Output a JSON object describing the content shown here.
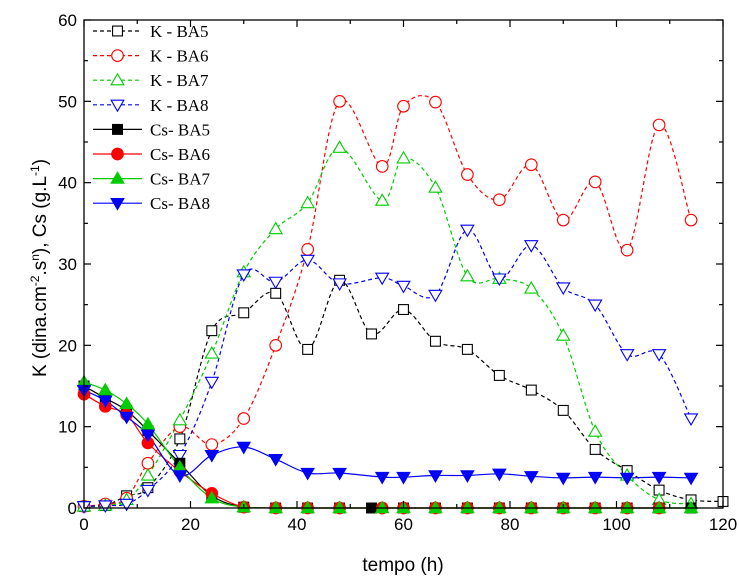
{
  "chart_data": {
    "type": "line",
    "xlabel": "tempo (h)",
    "ylabel": "K (dina.cm-2.sn), Cs (g.L-1)",
    "ylabel_parts": {
      "k_main": "K (dina.cm",
      "k_exp1": "-2",
      "k_mid": ".s",
      "k_exp2": "n",
      "k_close": "), Cs (g.L",
      "cs_exp": "-1",
      "cs_close": ")"
    },
    "xlim": [
      0,
      120
    ],
    "ylim": [
      0,
      60
    ],
    "xticks": [
      0,
      20,
      40,
      60,
      80,
      100,
      120
    ],
    "yticks": [
      0,
      10,
      20,
      30,
      40,
      50,
      60
    ],
    "grid": false,
    "legend_position": "top-left",
    "series": [
      {
        "name": "K - BA5",
        "color": "#000000",
        "marker": "square",
        "filled": false,
        "dash": true,
        "points": [
          [
            0,
            0.2
          ],
          [
            4,
            0.3
          ],
          [
            8,
            1.5
          ],
          [
            12,
            2.5
          ],
          [
            18,
            8.5
          ],
          [
            24,
            21.8
          ],
          [
            30,
            24
          ],
          [
            36,
            26.4
          ],
          [
            42,
            19.5
          ],
          [
            48,
            28
          ],
          [
            54,
            21.4
          ],
          [
            60,
            24.4
          ],
          [
            66,
            20.5
          ],
          [
            72,
            19.5
          ],
          [
            78,
            16.3
          ],
          [
            84,
            14.5
          ],
          [
            90,
            12
          ],
          [
            96,
            7.2
          ],
          [
            102,
            4.6
          ],
          [
            108,
            2.2
          ],
          [
            114,
            1
          ],
          [
            120,
            0.8
          ]
        ]
      },
      {
        "name": "K - BA6",
        "color": "#ff0000",
        "marker": "circle",
        "filled": false,
        "dash": true,
        "points": [
          [
            0,
            0.2
          ],
          [
            4,
            0.5
          ],
          [
            8,
            1.2
          ],
          [
            12,
            5.5
          ],
          [
            18,
            10
          ],
          [
            24,
            7.8
          ],
          [
            30,
            11
          ],
          [
            36,
            20
          ],
          [
            42,
            31.8
          ],
          [
            48,
            50
          ],
          [
            56,
            42
          ],
          [
            60,
            49.4
          ],
          [
            66,
            49.9
          ],
          [
            72,
            41
          ],
          [
            78,
            37.9
          ],
          [
            84,
            42.2
          ],
          [
            90,
            35.4
          ],
          [
            96,
            40.1
          ],
          [
            102,
            31.7
          ],
          [
            108,
            47.1
          ],
          [
            114,
            35.4
          ]
        ]
      },
      {
        "name": "K - BA7",
        "color": "#00cc00",
        "marker": "triangle-up",
        "filled": false,
        "dash": true,
        "points": [
          [
            0,
            0.2
          ],
          [
            4,
            0.3
          ],
          [
            8,
            1
          ],
          [
            12,
            4
          ],
          [
            18,
            10.8
          ],
          [
            24,
            19
          ],
          [
            30,
            29
          ],
          [
            36,
            34.3
          ],
          [
            42,
            37.5
          ],
          [
            48,
            44.3
          ],
          [
            56,
            37.8
          ],
          [
            60,
            43
          ],
          [
            66,
            39.4
          ],
          [
            72,
            28.5
          ],
          [
            78,
            28.2
          ],
          [
            84,
            27
          ],
          [
            90,
            21.2
          ],
          [
            96,
            9.4
          ],
          [
            102,
            4
          ],
          [
            108,
            1
          ],
          [
            114,
            0.5
          ]
        ]
      },
      {
        "name": "K - BA8",
        "color": "#0000ff",
        "marker": "triangle-down",
        "filled": false,
        "dash": true,
        "points": [
          [
            0,
            0.2
          ],
          [
            4,
            0.3
          ],
          [
            8,
            0.5
          ],
          [
            12,
            2.2
          ],
          [
            18,
            6.5
          ],
          [
            24,
            15.5
          ],
          [
            30,
            28.7
          ],
          [
            36,
            27.8
          ],
          [
            42,
            30.5
          ],
          [
            48,
            27.6
          ],
          [
            56,
            28.3
          ],
          [
            60,
            27.3
          ],
          [
            66,
            26.2
          ],
          [
            72,
            34.2
          ],
          [
            78,
            28.2
          ],
          [
            84,
            32.3
          ],
          [
            90,
            27.1
          ],
          [
            96,
            25
          ],
          [
            102,
            18.9
          ],
          [
            108,
            18.9
          ],
          [
            114,
            11
          ]
        ]
      },
      {
        "name": "Cs- BA5",
        "color": "#000000",
        "marker": "square",
        "filled": true,
        "dash": false,
        "points": [
          [
            0,
            15
          ],
          [
            4,
            13.5
          ],
          [
            8,
            12
          ],
          [
            12,
            9.5
          ],
          [
            18,
            5.5
          ],
          [
            24,
            1.5
          ],
          [
            30,
            0.1
          ],
          [
            36,
            0
          ],
          [
            42,
            0
          ],
          [
            48,
            0
          ],
          [
            54,
            0
          ],
          [
            60,
            0
          ],
          [
            66,
            0
          ],
          [
            72,
            0
          ],
          [
            78,
            0
          ],
          [
            84,
            0
          ],
          [
            90,
            0
          ],
          [
            96,
            0
          ],
          [
            102,
            0
          ],
          [
            108,
            0
          ],
          [
            114,
            0
          ]
        ]
      },
      {
        "name": "Cs- BA6",
        "color": "#ff0000",
        "marker": "circle",
        "filled": true,
        "dash": false,
        "points": [
          [
            0,
            14
          ],
          [
            4,
            12.5
          ],
          [
            8,
            11.5
          ],
          [
            12,
            8
          ],
          [
            18,
            4.5
          ],
          [
            24,
            1.8
          ],
          [
            30,
            0.1
          ],
          [
            36,
            0
          ],
          [
            42,
            0
          ],
          [
            48,
            0
          ],
          [
            56,
            0
          ],
          [
            60,
            0
          ],
          [
            66,
            0
          ],
          [
            72,
            0
          ],
          [
            78,
            0
          ],
          [
            84,
            0
          ],
          [
            90,
            0
          ],
          [
            96,
            0
          ],
          [
            102,
            0
          ],
          [
            108,
            0
          ]
        ]
      },
      {
        "name": "Cs- BA7",
        "color": "#00cc00",
        "marker": "triangle-up",
        "filled": true,
        "dash": false,
        "points": [
          [
            0,
            15.5
          ],
          [
            4,
            14.5
          ],
          [
            8,
            12.8
          ],
          [
            12,
            10.3
          ],
          [
            18,
            5
          ],
          [
            24,
            1.2
          ],
          [
            30,
            0.1
          ],
          [
            36,
            0
          ],
          [
            42,
            0
          ],
          [
            48,
            0
          ],
          [
            56,
            0
          ],
          [
            60,
            0
          ],
          [
            66,
            0
          ],
          [
            72,
            0
          ],
          [
            78,
            0
          ],
          [
            84,
            0
          ],
          [
            90,
            0
          ],
          [
            96,
            0
          ],
          [
            102,
            0
          ],
          [
            108,
            0
          ],
          [
            114,
            0
          ]
        ]
      },
      {
        "name": "Cs- BA8",
        "color": "#0000ff",
        "marker": "triangle-down",
        "filled": true,
        "dash": false,
        "points": [
          [
            0,
            14.5
          ],
          [
            4,
            13.2
          ],
          [
            8,
            11.2
          ],
          [
            12,
            9
          ],
          [
            18,
            4
          ],
          [
            24,
            6.5
          ],
          [
            30,
            7.5
          ],
          [
            36,
            6
          ],
          [
            42,
            4.3
          ],
          [
            48,
            4.3
          ],
          [
            56,
            3.8
          ],
          [
            60,
            3.8
          ],
          [
            66,
            4
          ],
          [
            72,
            4
          ],
          [
            78,
            4.2
          ],
          [
            84,
            3.9
          ],
          [
            90,
            3.7
          ],
          [
            96,
            3.8
          ],
          [
            102,
            3.7
          ],
          [
            108,
            3.8
          ],
          [
            114,
            3.7
          ]
        ]
      }
    ]
  }
}
